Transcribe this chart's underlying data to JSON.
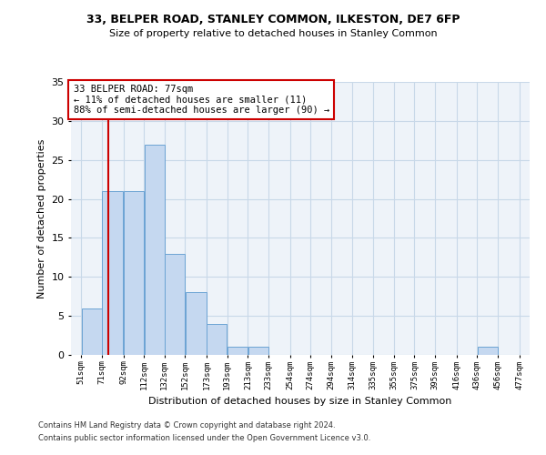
{
  "title1": "33, BELPER ROAD, STANLEY COMMON, ILKESTON, DE7 6FP",
  "title2": "Size of property relative to detached houses in Stanley Common",
  "xlabel": "Distribution of detached houses by size in Stanley Common",
  "ylabel": "Number of detached properties",
  "footnote1": "Contains HM Land Registry data © Crown copyright and database right 2024.",
  "footnote2": "Contains public sector information licensed under the Open Government Licence v3.0.",
  "bin_edges": [
    51,
    71,
    92,
    112,
    132,
    152,
    173,
    193,
    213,
    233,
    254,
    274,
    294,
    314,
    335,
    355,
    375,
    395,
    416,
    436,
    456,
    477
  ],
  "bar_heights": [
    6,
    21,
    21,
    27,
    13,
    8,
    4,
    1,
    1,
    0,
    0,
    0,
    0,
    0,
    0,
    0,
    0,
    0,
    0,
    1,
    0
  ],
  "bar_color": "#c5d8f0",
  "bar_edgecolor": "#6ca3d4",
  "grid_color": "#c8d8e8",
  "bg_color": "#eef3f9",
  "annotation_box_text": "33 BELPER ROAD: 77sqm\n← 11% of detached houses are smaller (11)\n88% of semi-detached houses are larger (90) →",
  "red_line_x": 77,
  "red_line_color": "#cc0000",
  "annotation_box_edgecolor": "#cc0000",
  "ylim": [
    0,
    35
  ],
  "yticks": [
    0,
    5,
    10,
    15,
    20,
    25,
    30,
    35
  ]
}
